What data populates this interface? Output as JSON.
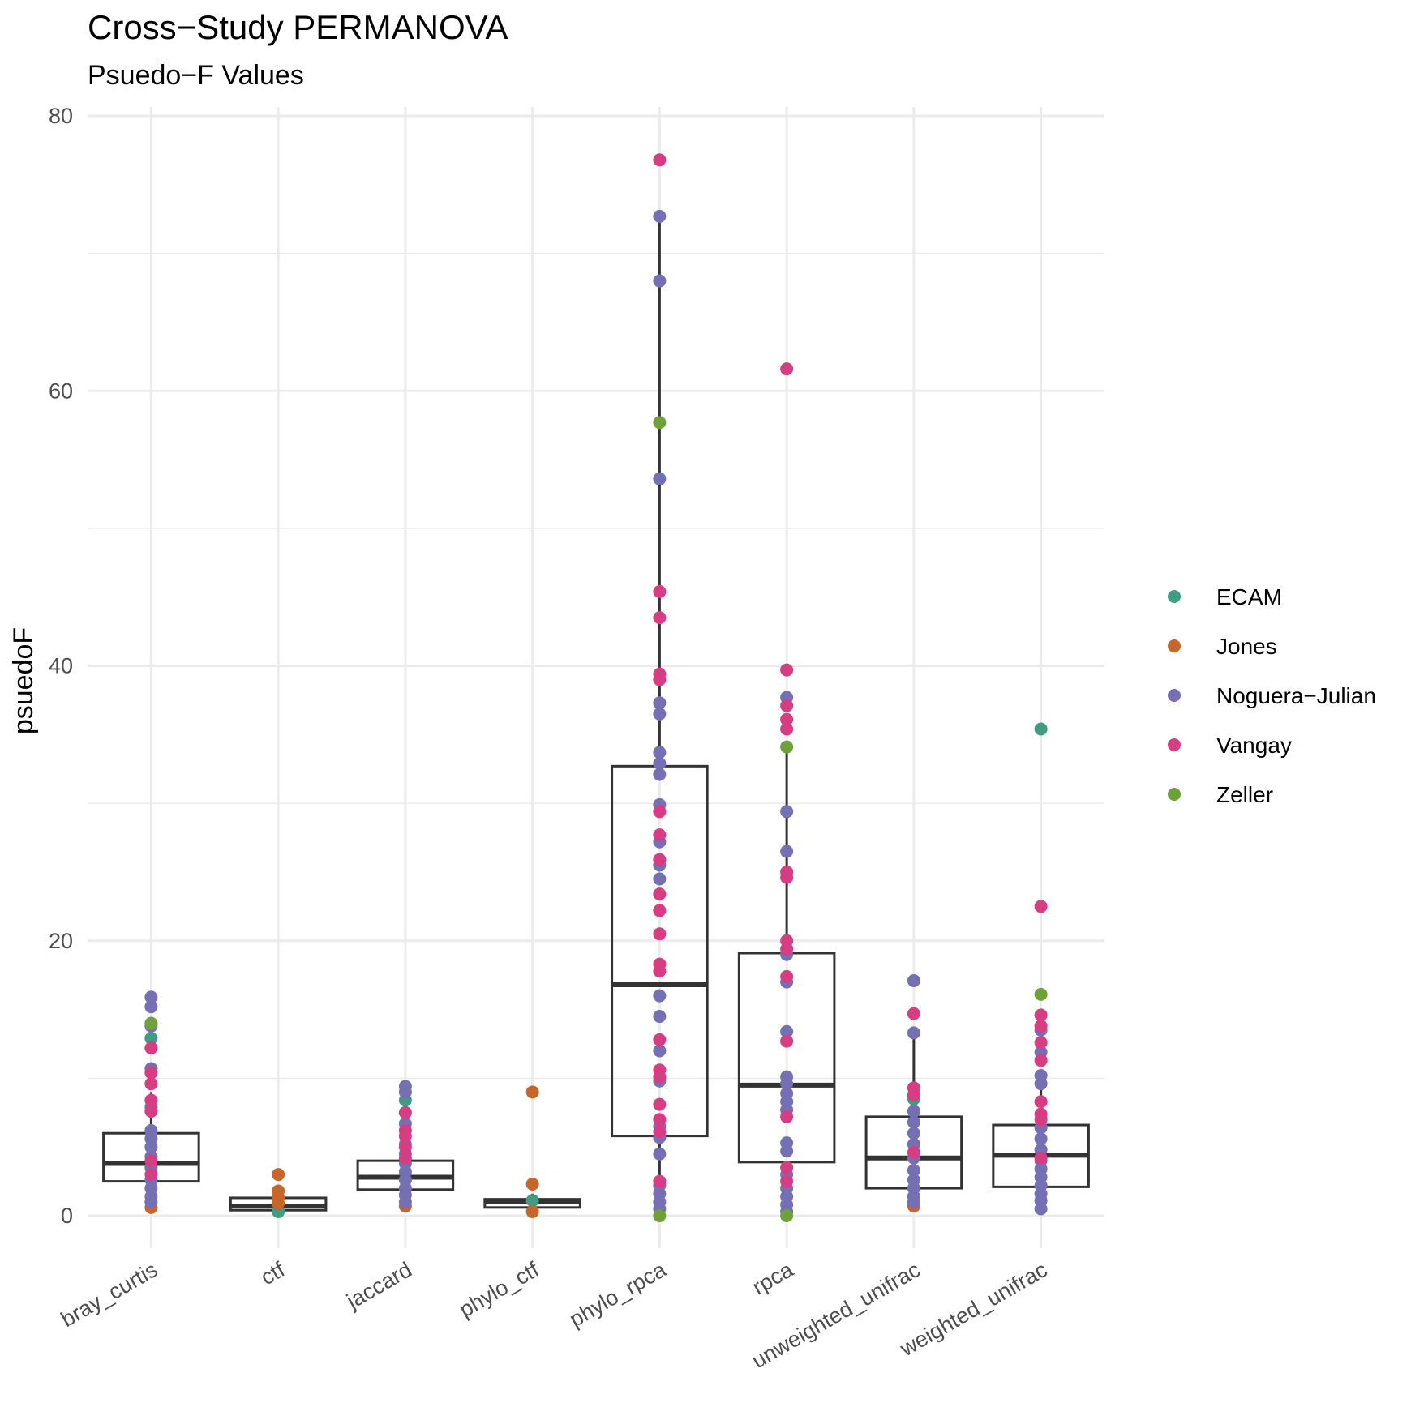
{
  "chart_data": {
    "type": "box-with-points",
    "title": "Cross−Study PERMANOVA",
    "subtitle": "Psuedo−F Values",
    "xlabel": "",
    "ylabel": "psuedoF",
    "ylim": [
      -4,
      82
    ],
    "yticks": [
      0,
      20,
      40,
      60,
      80
    ],
    "grid": true,
    "legend_position": "right",
    "categories": [
      "bray_curtis",
      "ctf",
      "jaccard",
      "phylo_ctf",
      "phylo_rpca",
      "rpca",
      "unweighted_unifrac",
      "weighted_unifrac"
    ],
    "boxes": [
      {
        "category": "bray_curtis",
        "q1": 2.5,
        "median": 3.8,
        "q3": 6.0,
        "whisker_low": 0.6,
        "whisker_high": 9.0
      },
      {
        "category": "ctf",
        "q1": 0.4,
        "median": 0.7,
        "q3": 1.3,
        "whisker_low": 0.2,
        "whisker_high": 2.2
      },
      {
        "category": "jaccard",
        "q1": 1.9,
        "median": 2.8,
        "q3": 4.0,
        "whisker_low": 0.6,
        "whisker_high": 5.5
      },
      {
        "category": "phylo_ctf",
        "q1": 0.6,
        "median": 1.0,
        "q3": 1.2,
        "whisker_low": 0.2,
        "whisker_high": 1.6
      },
      {
        "category": "phylo_rpca",
        "q1": 5.8,
        "median": 16.8,
        "q3": 32.7,
        "whisker_low": 0.0,
        "whisker_high": 72.7
      },
      {
        "category": "rpca",
        "q1": 3.9,
        "median": 9.5,
        "q3": 19.1,
        "whisker_low": 0.0,
        "whisker_high": 34.1
      },
      {
        "category": "unweighted_unifrac",
        "q1": 2.0,
        "median": 4.2,
        "q3": 7.2,
        "whisker_low": 0.6,
        "whisker_high": 13.2
      },
      {
        "category": "weighted_unifrac",
        "q1": 2.1,
        "median": 4.4,
        "q3": 6.6,
        "whisker_low": 0.4,
        "whisker_high": 9.6
      }
    ],
    "series": [
      {
        "name": "ECAM",
        "color": "#419a82",
        "points": [
          {
            "x": "bray_curtis",
            "y": 12.9
          },
          {
            "x": "ctf",
            "y": 0.3
          },
          {
            "x": "jaccard",
            "y": 8.4
          },
          {
            "x": "phylo_ctf",
            "y": 1.1
          },
          {
            "x": "unweighted_unifrac",
            "y": 8.5
          },
          {
            "x": "weighted_unifrac",
            "y": 35.4
          }
        ]
      },
      {
        "name": "Jones",
        "color": "#c8652b",
        "points": [
          {
            "x": "bray_curtis",
            "y": 0.6
          },
          {
            "x": "ctf",
            "y": 3.0
          },
          {
            "x": "ctf",
            "y": 1.8
          },
          {
            "x": "ctf",
            "y": 1.3
          },
          {
            "x": "ctf",
            "y": 0.9
          },
          {
            "x": "jaccard",
            "y": 0.7
          },
          {
            "x": "phylo_ctf",
            "y": 9.0
          },
          {
            "x": "phylo_ctf",
            "y": 2.3
          },
          {
            "x": "phylo_ctf",
            "y": 0.3
          },
          {
            "x": "unweighted_unifrac",
            "y": 0.7
          }
        ]
      },
      {
        "name": "Noguera−Julian",
        "color": "#7570b3",
        "points": [
          {
            "x": "bray_curtis",
            "y": 15.9
          },
          {
            "x": "bray_curtis",
            "y": 15.2
          },
          {
            "x": "bray_curtis",
            "y": 13.8
          },
          {
            "x": "bray_curtis",
            "y": 10.7
          },
          {
            "x": "bray_curtis",
            "y": 7.9
          },
          {
            "x": "bray_curtis",
            "y": 6.2
          },
          {
            "x": "bray_curtis",
            "y": 5.6
          },
          {
            "x": "bray_curtis",
            "y": 5.0
          },
          {
            "x": "bray_curtis",
            "y": 4.3
          },
          {
            "x": "bray_curtis",
            "y": 3.5
          },
          {
            "x": "bray_curtis",
            "y": 2.6
          },
          {
            "x": "bray_curtis",
            "y": 2.0
          },
          {
            "x": "bray_curtis",
            "y": 1.4
          },
          {
            "x": "bray_curtis",
            "y": 1.0
          },
          {
            "x": "jaccard",
            "y": 9.4
          },
          {
            "x": "jaccard",
            "y": 9.0
          },
          {
            "x": "jaccard",
            "y": 6.7
          },
          {
            "x": "jaccard",
            "y": 5.2
          },
          {
            "x": "jaccard",
            "y": 4.5
          },
          {
            "x": "jaccard",
            "y": 3.8
          },
          {
            "x": "jaccard",
            "y": 3.2
          },
          {
            "x": "jaccard",
            "y": 2.6
          },
          {
            "x": "jaccard",
            "y": 2.0
          },
          {
            "x": "jaccard",
            "y": 1.5
          },
          {
            "x": "jaccard",
            "y": 1.0
          },
          {
            "x": "phylo_rpca",
            "y": 72.7
          },
          {
            "x": "phylo_rpca",
            "y": 68.0
          },
          {
            "x": "phylo_rpca",
            "y": 53.6
          },
          {
            "x": "phylo_rpca",
            "y": 37.3
          },
          {
            "x": "phylo_rpca",
            "y": 36.5
          },
          {
            "x": "phylo_rpca",
            "y": 33.7
          },
          {
            "x": "phylo_rpca",
            "y": 32.9
          },
          {
            "x": "phylo_rpca",
            "y": 32.1
          },
          {
            "x": "phylo_rpca",
            "y": 29.9
          },
          {
            "x": "phylo_rpca",
            "y": 27.2
          },
          {
            "x": "phylo_rpca",
            "y": 25.5
          },
          {
            "x": "phylo_rpca",
            "y": 24.5
          },
          {
            "x": "phylo_rpca",
            "y": 16.0
          },
          {
            "x": "phylo_rpca",
            "y": 14.5
          },
          {
            "x": "phylo_rpca",
            "y": 12.0
          },
          {
            "x": "phylo_rpca",
            "y": 9.8
          },
          {
            "x": "phylo_rpca",
            "y": 6.5
          },
          {
            "x": "phylo_rpca",
            "y": 5.7
          },
          {
            "x": "phylo_rpca",
            "y": 4.5
          },
          {
            "x": "phylo_rpca",
            "y": 2.2
          },
          {
            "x": "phylo_rpca",
            "y": 1.6
          },
          {
            "x": "phylo_rpca",
            "y": 1.0
          },
          {
            "x": "phylo_rpca",
            "y": 0.5
          },
          {
            "x": "rpca",
            "y": 37.7
          },
          {
            "x": "rpca",
            "y": 29.4
          },
          {
            "x": "rpca",
            "y": 26.5
          },
          {
            "x": "rpca",
            "y": 19.0
          },
          {
            "x": "rpca",
            "y": 17.0
          },
          {
            "x": "rpca",
            "y": 13.4
          },
          {
            "x": "rpca",
            "y": 10.1
          },
          {
            "x": "rpca",
            "y": 9.6
          },
          {
            "x": "rpca",
            "y": 8.9
          },
          {
            "x": "rpca",
            "y": 8.3
          },
          {
            "x": "rpca",
            "y": 7.7
          },
          {
            "x": "rpca",
            "y": 5.3
          },
          {
            "x": "rpca",
            "y": 4.7
          },
          {
            "x": "rpca",
            "y": 3.0
          },
          {
            "x": "rpca",
            "y": 2.0
          },
          {
            "x": "rpca",
            "y": 1.4
          },
          {
            "x": "rpca",
            "y": 0.8
          },
          {
            "x": "rpca",
            "y": 0.3
          },
          {
            "x": "unweighted_unifrac",
            "y": 17.1
          },
          {
            "x": "unweighted_unifrac",
            "y": 13.3
          },
          {
            "x": "unweighted_unifrac",
            "y": 7.6
          },
          {
            "x": "unweighted_unifrac",
            "y": 6.8
          },
          {
            "x": "unweighted_unifrac",
            "y": 6.0
          },
          {
            "x": "unweighted_unifrac",
            "y": 5.2
          },
          {
            "x": "unweighted_unifrac",
            "y": 4.2
          },
          {
            "x": "unweighted_unifrac",
            "y": 3.3
          },
          {
            "x": "unweighted_unifrac",
            "y": 2.6
          },
          {
            "x": "unweighted_unifrac",
            "y": 2.0
          },
          {
            "x": "unweighted_unifrac",
            "y": 1.4
          },
          {
            "x": "unweighted_unifrac",
            "y": 1.0
          },
          {
            "x": "weighted_unifrac",
            "y": 13.5
          },
          {
            "x": "weighted_unifrac",
            "y": 11.9
          },
          {
            "x": "weighted_unifrac",
            "y": 10.2
          },
          {
            "x": "weighted_unifrac",
            "y": 9.6
          },
          {
            "x": "weighted_unifrac",
            "y": 6.4
          },
          {
            "x": "weighted_unifrac",
            "y": 5.6
          },
          {
            "x": "weighted_unifrac",
            "y": 4.8
          },
          {
            "x": "weighted_unifrac",
            "y": 4.0
          },
          {
            "x": "weighted_unifrac",
            "y": 3.4
          },
          {
            "x": "weighted_unifrac",
            "y": 2.8
          },
          {
            "x": "weighted_unifrac",
            "y": 2.2
          },
          {
            "x": "weighted_unifrac",
            "y": 1.6
          },
          {
            "x": "weighted_unifrac",
            "y": 1.1
          },
          {
            "x": "weighted_unifrac",
            "y": 0.5
          }
        ]
      },
      {
        "name": "Vangay",
        "color": "#d63d83",
        "points": [
          {
            "x": "bray_curtis",
            "y": 12.2
          },
          {
            "x": "bray_curtis",
            "y": 10.4
          },
          {
            "x": "bray_curtis",
            "y": 9.6
          },
          {
            "x": "bray_curtis",
            "y": 8.4
          },
          {
            "x": "bray_curtis",
            "y": 7.6
          },
          {
            "x": "bray_curtis",
            "y": 4.0
          },
          {
            "x": "bray_curtis",
            "y": 3.0
          },
          {
            "x": "jaccard",
            "y": 7.5
          },
          {
            "x": "jaccard",
            "y": 6.2
          },
          {
            "x": "jaccard",
            "y": 5.8
          },
          {
            "x": "jaccard",
            "y": 5.0
          },
          {
            "x": "jaccard",
            "y": 4.2
          },
          {
            "x": "phylo_rpca",
            "y": 76.8
          },
          {
            "x": "phylo_rpca",
            "y": 45.4
          },
          {
            "x": "phylo_rpca",
            "y": 43.5
          },
          {
            "x": "phylo_rpca",
            "y": 39.4
          },
          {
            "x": "phylo_rpca",
            "y": 39.0
          },
          {
            "x": "phylo_rpca",
            "y": 29.4
          },
          {
            "x": "phylo_rpca",
            "y": 27.7
          },
          {
            "x": "phylo_rpca",
            "y": 25.9
          },
          {
            "x": "phylo_rpca",
            "y": 23.4
          },
          {
            "x": "phylo_rpca",
            "y": 22.2
          },
          {
            "x": "phylo_rpca",
            "y": 20.5
          },
          {
            "x": "phylo_rpca",
            "y": 18.3
          },
          {
            "x": "phylo_rpca",
            "y": 17.8
          },
          {
            "x": "phylo_rpca",
            "y": 12.8
          },
          {
            "x": "phylo_rpca",
            "y": 10.6
          },
          {
            "x": "phylo_rpca",
            "y": 10.1
          },
          {
            "x": "phylo_rpca",
            "y": 8.1
          },
          {
            "x": "phylo_rpca",
            "y": 7.0
          },
          {
            "x": "phylo_rpca",
            "y": 6.1
          },
          {
            "x": "phylo_rpca",
            "y": 2.5
          },
          {
            "x": "rpca",
            "y": 61.6
          },
          {
            "x": "rpca",
            "y": 39.7
          },
          {
            "x": "rpca",
            "y": 37.1
          },
          {
            "x": "rpca",
            "y": 36.1
          },
          {
            "x": "rpca",
            "y": 35.4
          },
          {
            "x": "rpca",
            "y": 25.0
          },
          {
            "x": "rpca",
            "y": 24.6
          },
          {
            "x": "rpca",
            "y": 20.0
          },
          {
            "x": "rpca",
            "y": 19.4
          },
          {
            "x": "rpca",
            "y": 17.4
          },
          {
            "x": "rpca",
            "y": 12.7
          },
          {
            "x": "rpca",
            "y": 7.2
          },
          {
            "x": "rpca",
            "y": 3.5
          },
          {
            "x": "rpca",
            "y": 2.5
          },
          {
            "x": "unweighted_unifrac",
            "y": 14.7
          },
          {
            "x": "unweighted_unifrac",
            "y": 9.3
          },
          {
            "x": "unweighted_unifrac",
            "y": 8.8
          },
          {
            "x": "unweighted_unifrac",
            "y": 4.6
          },
          {
            "x": "weighted_unifrac",
            "y": 22.5
          },
          {
            "x": "weighted_unifrac",
            "y": 14.6
          },
          {
            "x": "weighted_unifrac",
            "y": 13.8
          },
          {
            "x": "weighted_unifrac",
            "y": 12.6
          },
          {
            "x": "weighted_unifrac",
            "y": 11.3
          },
          {
            "x": "weighted_unifrac",
            "y": 8.3
          },
          {
            "x": "weighted_unifrac",
            "y": 7.4
          },
          {
            "x": "weighted_unifrac",
            "y": 7.0
          },
          {
            "x": "weighted_unifrac",
            "y": 4.2
          }
        ]
      },
      {
        "name": "Zeller",
        "color": "#6ea13a",
        "points": [
          {
            "x": "bray_curtis",
            "y": 14.0
          },
          {
            "x": "phylo_rpca",
            "y": 57.7
          },
          {
            "x": "phylo_rpca",
            "y": 0.0
          },
          {
            "x": "rpca",
            "y": 34.1
          },
          {
            "x": "rpca",
            "y": 0.0
          },
          {
            "x": "weighted_unifrac",
            "y": 16.1
          }
        ]
      }
    ]
  }
}
